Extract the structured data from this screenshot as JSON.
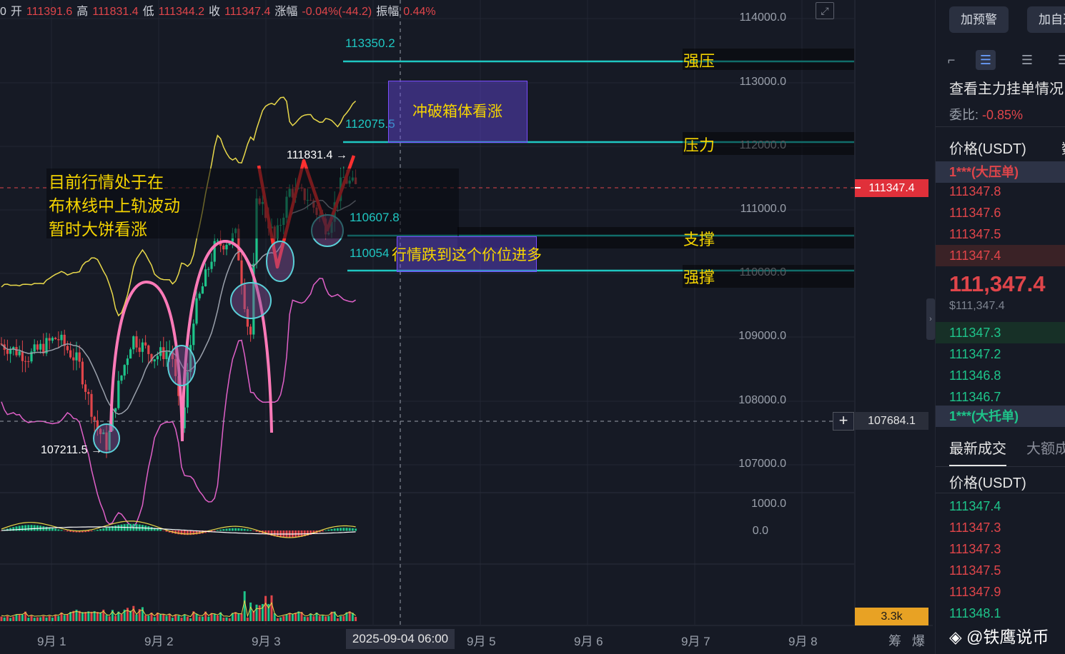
{
  "ohlc": {
    "prefix": "0",
    "open_label": "开",
    "open": "111391.6",
    "high_label": "高",
    "high": "111831.4",
    "low_label": "低",
    "low": "111344.2",
    "close_label": "收",
    "close": "111347.4",
    "change_label": "涨幅",
    "change": "-0.04%(-44.2)",
    "amplitude_label": "振幅",
    "amplitude": "0.44%"
  },
  "y_axis": {
    "ticks": [
      "114000.0",
      "113000.0",
      "112000.0",
      "111000.0",
      "110000.0",
      "109000.0",
      "108000.0",
      "107000.0"
    ],
    "macd_ticks": [
      "1000.0",
      "0.0"
    ],
    "current_price": "111347.4",
    "crosshair_price": "107684.1",
    "volume_value": "3.3k"
  },
  "x_axis": {
    "ticks": [
      "9月 1",
      "9月 2",
      "9月 3",
      "9月 5",
      "9月 6",
      "9月 7",
      "9月 8"
    ],
    "crosshair_date": "2025-09-04 06:00",
    "right_icons": [
      "筹",
      "爆"
    ]
  },
  "annotations": {
    "lines": [
      "目前行情处于在",
      "布林线中上轨波动",
      "暂时大饼看涨"
    ],
    "high_marker": "111831.4",
    "low_marker": "107211.5",
    "levels": [
      {
        "value": "113350.2",
        "name": "强压"
      },
      {
        "value": "112075.5",
        "name": "压力"
      },
      {
        "value": "110607.8",
        "name": "支撑"
      },
      {
        "value": "110054",
        "name": "强撑"
      }
    ],
    "breakout_box": "冲破箱体看涨",
    "entry_box": "行情跌到这个价位进多"
  },
  "colors": {
    "background": "#161a25",
    "up": "#1ec48a",
    "down": "#e0454a",
    "level_line": "#1fc7c2",
    "annotation_text": "#f5d400",
    "bollinger_upper": "#e8d84a",
    "bollinger_lower": "#e060c8",
    "arc": "#ff7ab8",
    "zigzag": "#ff3030"
  },
  "panel": {
    "buttons": [
      "加预警",
      "加自选"
    ],
    "icons": [
      "split-icon",
      "orderbook-both-icon",
      "orderbook-list-icon",
      "orderbook-more-icon"
    ],
    "title": "查看主力挂单情况",
    "ratio_label": "委比:",
    "ratio_value": "-0.85%",
    "price_header": "价格(USDT)",
    "amount_header_short": "数",
    "ask_big": "1***(大压单)",
    "asks": [
      "111347.8",
      "111347.6",
      "111347.5",
      "111347.4"
    ],
    "last_price": "111,347.4",
    "last_price_usd": "$111,347.4",
    "bids": [
      "111347.3",
      "111347.2",
      "111346.8",
      "111346.7"
    ],
    "bid_big": "1***(大托单)",
    "tab_trades": "最新成交",
    "tab_big_trades": "大额成",
    "trades_header": "价格(USDT)",
    "trades": [
      {
        "price": "111347.4",
        "side": "buy"
      },
      {
        "price": "111347.3",
        "side": "sell"
      },
      {
        "price": "111347.3",
        "side": "sell"
      },
      {
        "price": "111347.5",
        "side": "sell"
      },
      {
        "price": "111347.9",
        "side": "sell"
      },
      {
        "price": "111348.1",
        "side": "buy"
      }
    ]
  },
  "watermark": "@铁鹰说币"
}
